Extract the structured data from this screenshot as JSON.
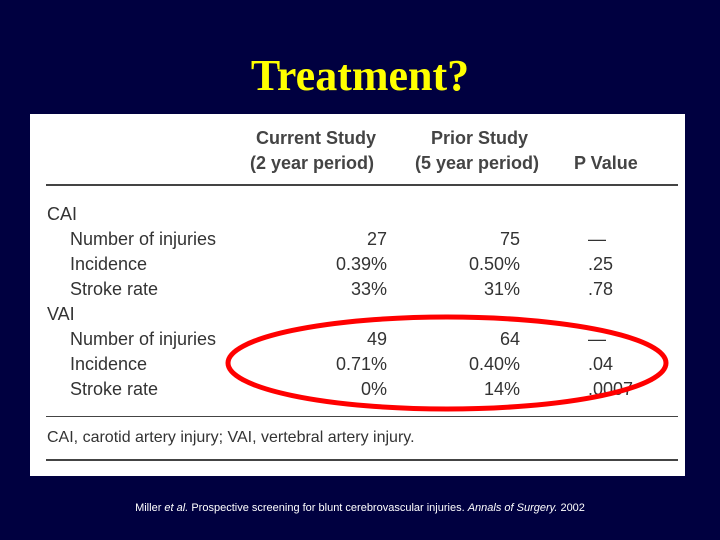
{
  "slide": {
    "title": "Treatment?",
    "highlight_color": "#ff0000",
    "title_color": "#ffff00",
    "background_color": "#000040"
  },
  "table": {
    "headers": {
      "current_study_line1": "Current Study",
      "current_study_line2": "(2 year period)",
      "prior_study_line1": "Prior Study",
      "prior_study_line2": "(5 year period)",
      "p_value": "P Value"
    },
    "groups": [
      {
        "name": "CAI",
        "rows": [
          {
            "label": "Number of injuries",
            "current": "27",
            "prior": "75",
            "p": "—"
          },
          {
            "label": "Incidence",
            "current": "0.39%",
            "prior": "0.50%",
            "p": ".25"
          },
          {
            "label": "Stroke rate",
            "current": "33%",
            "prior": "31%",
            "p": ".78"
          }
        ]
      },
      {
        "name": "VAI",
        "rows": [
          {
            "label": "Number of injuries",
            "current": "49",
            "prior": "64",
            "p": "—"
          },
          {
            "label": "Incidence",
            "current": "0.71%",
            "prior": "0.40%",
            "p": ".04"
          },
          {
            "label": "Stroke rate",
            "current": "0%",
            "prior": "14%",
            "p": ".0007"
          }
        ]
      }
    ],
    "footnote": "CAI, carotid artery injury; VAI, vertebral artery injury."
  },
  "citation": {
    "authors": "Miller ",
    "et_al": "et al.",
    "title": " Prospective screening for blunt cerebrovascular injuries. ",
    "journal": "Annals of Surgery.",
    "year": " 2002"
  }
}
